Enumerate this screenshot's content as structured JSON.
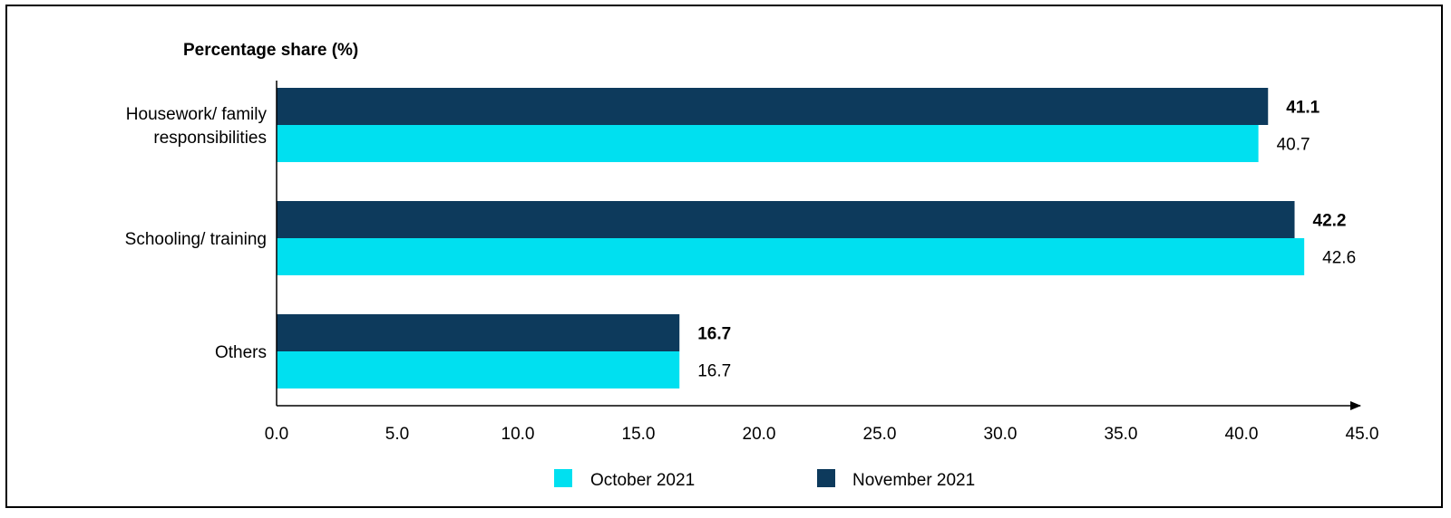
{
  "chart_data": {
    "type": "bar",
    "orientation": "horizontal",
    "title": "Percentage share (%)",
    "categories": [
      "Housework/ family responsibilities",
      "Schooling/ training",
      "Others"
    ],
    "category_lines": [
      [
        "Housework/ family",
        "responsibilities"
      ],
      [
        "Schooling/ training"
      ],
      [
        "Others"
      ]
    ],
    "series": [
      {
        "name": "November 2021",
        "values": [
          41.1,
          42.2,
          16.7
        ],
        "color": "#0d3a5c",
        "label_style": "bold"
      },
      {
        "name": "October 2021",
        "values": [
          40.7,
          42.6,
          16.7
        ],
        "color": "#00e0f0",
        "label_style": "normal"
      }
    ],
    "x_ticks": [
      "0.0",
      "5.0",
      "10.0",
      "15.0",
      "20.0",
      "25.0",
      "30.0",
      "35.0",
      "40.0",
      "45.0"
    ],
    "xlim": [
      0,
      45
    ],
    "grid": false,
    "legend": {
      "placement": "bottom",
      "items": [
        {
          "name": "October 2021",
          "color": "#00e0f0"
        },
        {
          "name": "November 2021",
          "color": "#0d3a5c"
        }
      ]
    }
  }
}
